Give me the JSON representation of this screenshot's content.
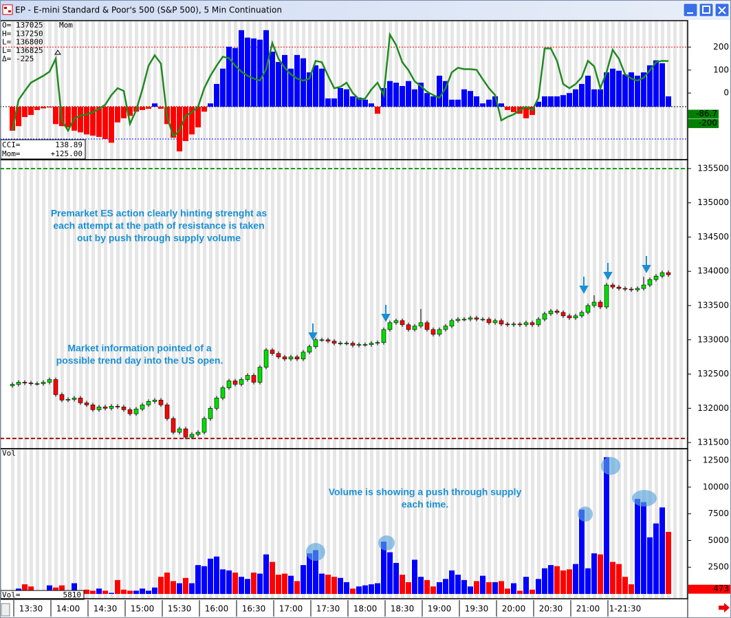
{
  "window": {
    "title": "EP - E-mini Standard & Poor's 500 (S&P 500), 5 Min Continuation"
  },
  "chart_data": [
    {
      "type": "indicator",
      "title": "Mom",
      "readouts": [
        "O= 137025",
        "H= 137250",
        "L= 136800",
        "L= 136825",
        "Δ=    -225"
      ],
      "ylim": [
        -290,
        315
      ],
      "yticks": [
        0,
        100,
        200
      ],
      "y2lim": [
        -640,
        1040
      ],
      "y2_markers": [
        -86.7,
        -200
      ],
      "levels": [
        {
          "value": 200,
          "color": "#ff0000"
        },
        {
          "value": -200,
          "color": "#0000ff"
        }
      ],
      "series": [
        {
          "name": "Mom=",
          "readout": "+125.00",
          "color": "#0000ff",
          "negative_color": "#ff0000",
          "axis": "y2",
          "values": [
            -290,
            -235,
            -125,
            -100,
            -40,
            -20,
            -10,
            -210,
            -235,
            -250,
            -290,
            -310,
            -335,
            -350,
            -365,
            -390,
            -435,
            -190,
            -140,
            -110,
            -60,
            -40,
            -25,
            40,
            -25,
            -210,
            -375,
            -540,
            -415,
            -335,
            -250,
            -60,
            40,
            275,
            460,
            725,
            710,
            925,
            835,
            825,
            810,
            925,
            665,
            540,
            625,
            460,
            625,
            585,
            415,
            500,
            460,
            100,
            100,
            225,
            210,
            125,
            110,
            85,
            40,
            -85,
            225,
            310,
            290,
            250,
            310,
            210,
            290,
            165,
            125,
            375,
            310,
            85,
            85,
            210,
            190,
            125,
            40,
            85,
            125,
            40,
            -40,
            -65,
            -85,
            -140,
            -100,
            60,
            125,
            125,
            125,
            140,
            165,
            210,
            275,
            375,
            210,
            210,
            415,
            460,
            435,
            390,
            415,
            375,
            415,
            500,
            560,
            525,
            125
          ]
        },
        {
          "name": "CCI=",
          "color": "#1f8a1f",
          "values": [
            -164,
            -30,
            9,
            45,
            60,
            75,
            93,
            149,
            -119,
            -164,
            -110,
            -99,
            -93,
            -84,
            -69,
            -51,
            -9,
            21,
            9,
            -134,
            -75,
            15,
            119,
            164,
            128,
            -104,
            -188,
            -164,
            -99,
            -84,
            -60,
            21,
            75,
            119,
            158,
            152,
            119,
            93,
            75,
            63,
            54,
            104,
            218,
            149,
            110,
            81,
            63,
            54,
            63,
            140,
            134,
            75,
            21,
            27,
            45,
            0,
            -27,
            -24,
            15,
            45,
            -9,
            254,
            209,
            134,
            99,
            51,
            30,
            6,
            -9,
            -21,
            21,
            90,
            110,
            104,
            104,
            101,
            60,
            21,
            -9,
            -119,
            -104,
            -93,
            -75,
            -60,
            -75,
            -21,
            194,
            194,
            140,
            39,
            21,
            39,
            69,
            140,
            116,
            21,
            90,
            188,
            149,
            81,
            63,
            54,
            66,
            99,
            134,
            140,
            138.89
          ]
        }
      ]
    },
    {
      "type": "candlestick",
      "up_color": "#00dd00",
      "down_color": "#ff0000",
      "ylim": [
        131410,
        135630
      ],
      "yticks": [
        131500,
        132000,
        132500,
        133000,
        133500,
        134000,
        134500,
        135000,
        135500
      ],
      "levels": [
        {
          "value": 135500,
          "color": "#1a9a1a"
        },
        {
          "value": 131560,
          "color": "#a01010"
        }
      ],
      "annotations": [
        [
          "Premarket ES action clearly hinting strenght as",
          "each attempt at the path of resistance is taken",
          "out by push through supply volume"
        ],
        [
          "Market information pointed of a",
          "possible trend day into the US open."
        ]
      ],
      "open": [
        132330,
        132350,
        132380,
        132370,
        132360,
        132360,
        132380,
        132420,
        132200,
        132120,
        132130,
        132150,
        132080,
        132050,
        131980,
        132020,
        132000,
        132030,
        132020,
        131980,
        131920,
        131990,
        132050,
        132100,
        132120,
        132050,
        131850,
        131650,
        131700,
        131580,
        131620,
        131650,
        131850,
        132000,
        132150,
        132300,
        132400,
        132350,
        132420,
        132480,
        132380,
        132600,
        132850,
        132800,
        132750,
        132720,
        132750,
        132720,
        132820,
        132900,
        133000,
        133000,
        132980,
        132950,
        132950,
        132950,
        132920,
        132930,
        132930,
        132950,
        132960,
        133150,
        133250,
        133280,
        133220,
        133150,
        133200,
        133250,
        133150,
        133080,
        133150,
        133200,
        133280,
        133300,
        133300,
        133320,
        133300,
        133300,
        133250,
        133280,
        133230,
        133220,
        133230,
        133220,
        133250,
        133220,
        133300,
        133380,
        133420,
        133400,
        133350,
        133320,
        133350,
        133400,
        133500,
        133550,
        133480,
        133800,
        133770,
        133750,
        133740,
        133730,
        133750,
        133800,
        133880,
        133930,
        133980
      ],
      "high": [
        132380,
        132410,
        132410,
        132400,
        132390,
        132410,
        132450,
        132450,
        132230,
        132160,
        132180,
        132180,
        132110,
        132080,
        132050,
        132050,
        132060,
        132060,
        132050,
        132010,
        132020,
        132080,
        132130,
        132150,
        132150,
        132080,
        131880,
        131730,
        131730,
        131650,
        131680,
        131880,
        132030,
        132180,
        132330,
        132430,
        132430,
        132450,
        132510,
        132510,
        132630,
        132880,
        132880,
        132830,
        132780,
        132780,
        132780,
        132850,
        132930,
        133030,
        133030,
        133030,
        133010,
        132980,
        132980,
        132980,
        132960,
        132960,
        132980,
        132990,
        133180,
        133280,
        133310,
        133310,
        133250,
        133230,
        133450,
        133280,
        133180,
        133180,
        133230,
        133310,
        133330,
        133330,
        133350,
        133350,
        133330,
        133330,
        133310,
        133310,
        133260,
        133260,
        133260,
        133280,
        133280,
        133330,
        133410,
        133450,
        133450,
        133430,
        133380,
        133380,
        133430,
        133530,
        133650,
        133580,
        133830,
        133830,
        133800,
        133780,
        133770,
        133780,
        133920,
        133910,
        133960,
        134010,
        134010
      ],
      "low": [
        132300,
        132320,
        132340,
        132330,
        132330,
        132330,
        132350,
        132170,
        132090,
        132090,
        132100,
        132050,
        132020,
        131950,
        131950,
        131970,
        131970,
        131990,
        131950,
        131890,
        131890,
        131960,
        132020,
        132070,
        132020,
        131820,
        131620,
        131620,
        131550,
        131550,
        131590,
        131620,
        131820,
        131970,
        132120,
        132270,
        132320,
        132320,
        132390,
        132350,
        132350,
        132570,
        132770,
        132720,
        132690,
        132690,
        132690,
        132690,
        132790,
        132870,
        132970,
        132950,
        132920,
        132920,
        132920,
        132890,
        132890,
        132900,
        132900,
        132920,
        132930,
        133120,
        133220,
        133190,
        133120,
        133120,
        133170,
        133120,
        133050,
        133050,
        133120,
        133170,
        133250,
        133270,
        133270,
        133270,
        133270,
        133220,
        133220,
        133200,
        133190,
        133190,
        133190,
        133190,
        133190,
        133190,
        133270,
        133350,
        133370,
        133320,
        133290,
        133290,
        133320,
        133370,
        133470,
        133450,
        133450,
        133740,
        133720,
        133710,
        133700,
        133700,
        133720,
        133770,
        133850,
        133900,
        133920
      ],
      "close": [
        132350,
        132380,
        132370,
        132360,
        132360,
        132380,
        132420,
        132200,
        132120,
        132130,
        132150,
        132080,
        132050,
        131980,
        132020,
        132000,
        132030,
        132020,
        131980,
        131920,
        131990,
        132050,
        132100,
        132120,
        132050,
        131850,
        131650,
        131700,
        131580,
        131620,
        131650,
        131850,
        132000,
        132150,
        132300,
        132400,
        132350,
        132420,
        132480,
        132380,
        132600,
        132850,
        132800,
        132750,
        132720,
        132750,
        132720,
        132820,
        132900,
        133000,
        133000,
        132980,
        132950,
        132950,
        132950,
        132920,
        132930,
        132930,
        132950,
        132960,
        133150,
        133250,
        133280,
        133220,
        133150,
        133200,
        133250,
        133150,
        133080,
        133150,
        133200,
        133280,
        133300,
        133300,
        133320,
        133300,
        133300,
        133250,
        133280,
        133230,
        133220,
        133230,
        133220,
        133250,
        133220,
        133300,
        133380,
        133420,
        133400,
        133350,
        133320,
        133350,
        133400,
        133500,
        133550,
        133480,
        133800,
        133770,
        133750,
        133740,
        133730,
        133750,
        133800,
        133880,
        133930,
        133980,
        133950
      ]
    },
    {
      "type": "bar",
      "title": "Vol",
      "readout": "Vol=",
      "up_color": "#0000ff",
      "down_color": "#ff0000",
      "ylim": [
        -450,
        13600
      ],
      "yticks": [
        2500,
        5000,
        7500,
        10000,
        12500
      ],
      "y_markers": [
        473
      ],
      "annotations": [
        [
          "Volume is showing a push through supply",
          "each time."
        ]
      ],
      "categories": [
        null,
        null,
        null,
        "13:30",
        null,
        null,
        null,
        null,
        null,
        "14:00",
        null,
        null,
        null,
        null,
        null,
        "14:30",
        null,
        null,
        null,
        null,
        null,
        "15:00",
        null,
        null,
        null,
        null,
        null,
        "15:30",
        null,
        null,
        null,
        null,
        null,
        "16:00",
        null,
        null,
        null,
        null,
        null,
        "16:30",
        null,
        null,
        null,
        null,
        null,
        "17:00",
        null,
        null,
        null,
        null,
        null,
        "17:30",
        null,
        null,
        null,
        null,
        null,
        "18:00",
        null,
        null,
        null,
        null,
        null,
        "18:30",
        null,
        null,
        null,
        null,
        null,
        "19:00",
        null,
        null,
        null,
        null,
        null,
        "19:30",
        null,
        null,
        null,
        null,
        null,
        "20:00",
        null,
        null,
        null,
        null,
        null,
        "20:30",
        null,
        null,
        null,
        null,
        null,
        "21:00",
        null,
        null,
        null,
        null,
        null,
        "1-21:30",
        null,
        null,
        null,
        null,
        null,
        null,
        null
      ],
      "values": [
        200,
        500,
        900,
        700,
        300,
        100,
        800,
        600,
        800,
        300,
        1000,
        200,
        400,
        300,
        500,
        300,
        100,
        1300,
        400,
        300,
        300,
        500,
        300,
        600,
        1600,
        2000,
        1200,
        1000,
        1500,
        1000,
        2700,
        2600,
        3300,
        3500,
        2300,
        2200,
        2000,
        1600,
        1400,
        2000,
        1900,
        3700,
        3000,
        1800,
        1900,
        1700,
        1200,
        2700,
        3800,
        4100,
        1900,
        1800,
        1600,
        1500,
        1100,
        500,
        700,
        800,
        900,
        1000,
        4900,
        3900,
        2900,
        1800,
        1100,
        3200,
        1600,
        1300,
        700,
        1100,
        1400,
        2200,
        1800,
        1300,
        700,
        1200,
        1700,
        1100,
        1100,
        1200,
        500,
        1000,
        300,
        1600,
        400,
        1400,
        2400,
        2700,
        2600,
        2200,
        2300,
        2800,
        7900,
        2400,
        3800,
        3700,
        12800,
        3000,
        2800,
        1600,
        900,
        8900,
        8600,
        5300,
        6600,
        8100,
        5810
      ]
    }
  ]
}
